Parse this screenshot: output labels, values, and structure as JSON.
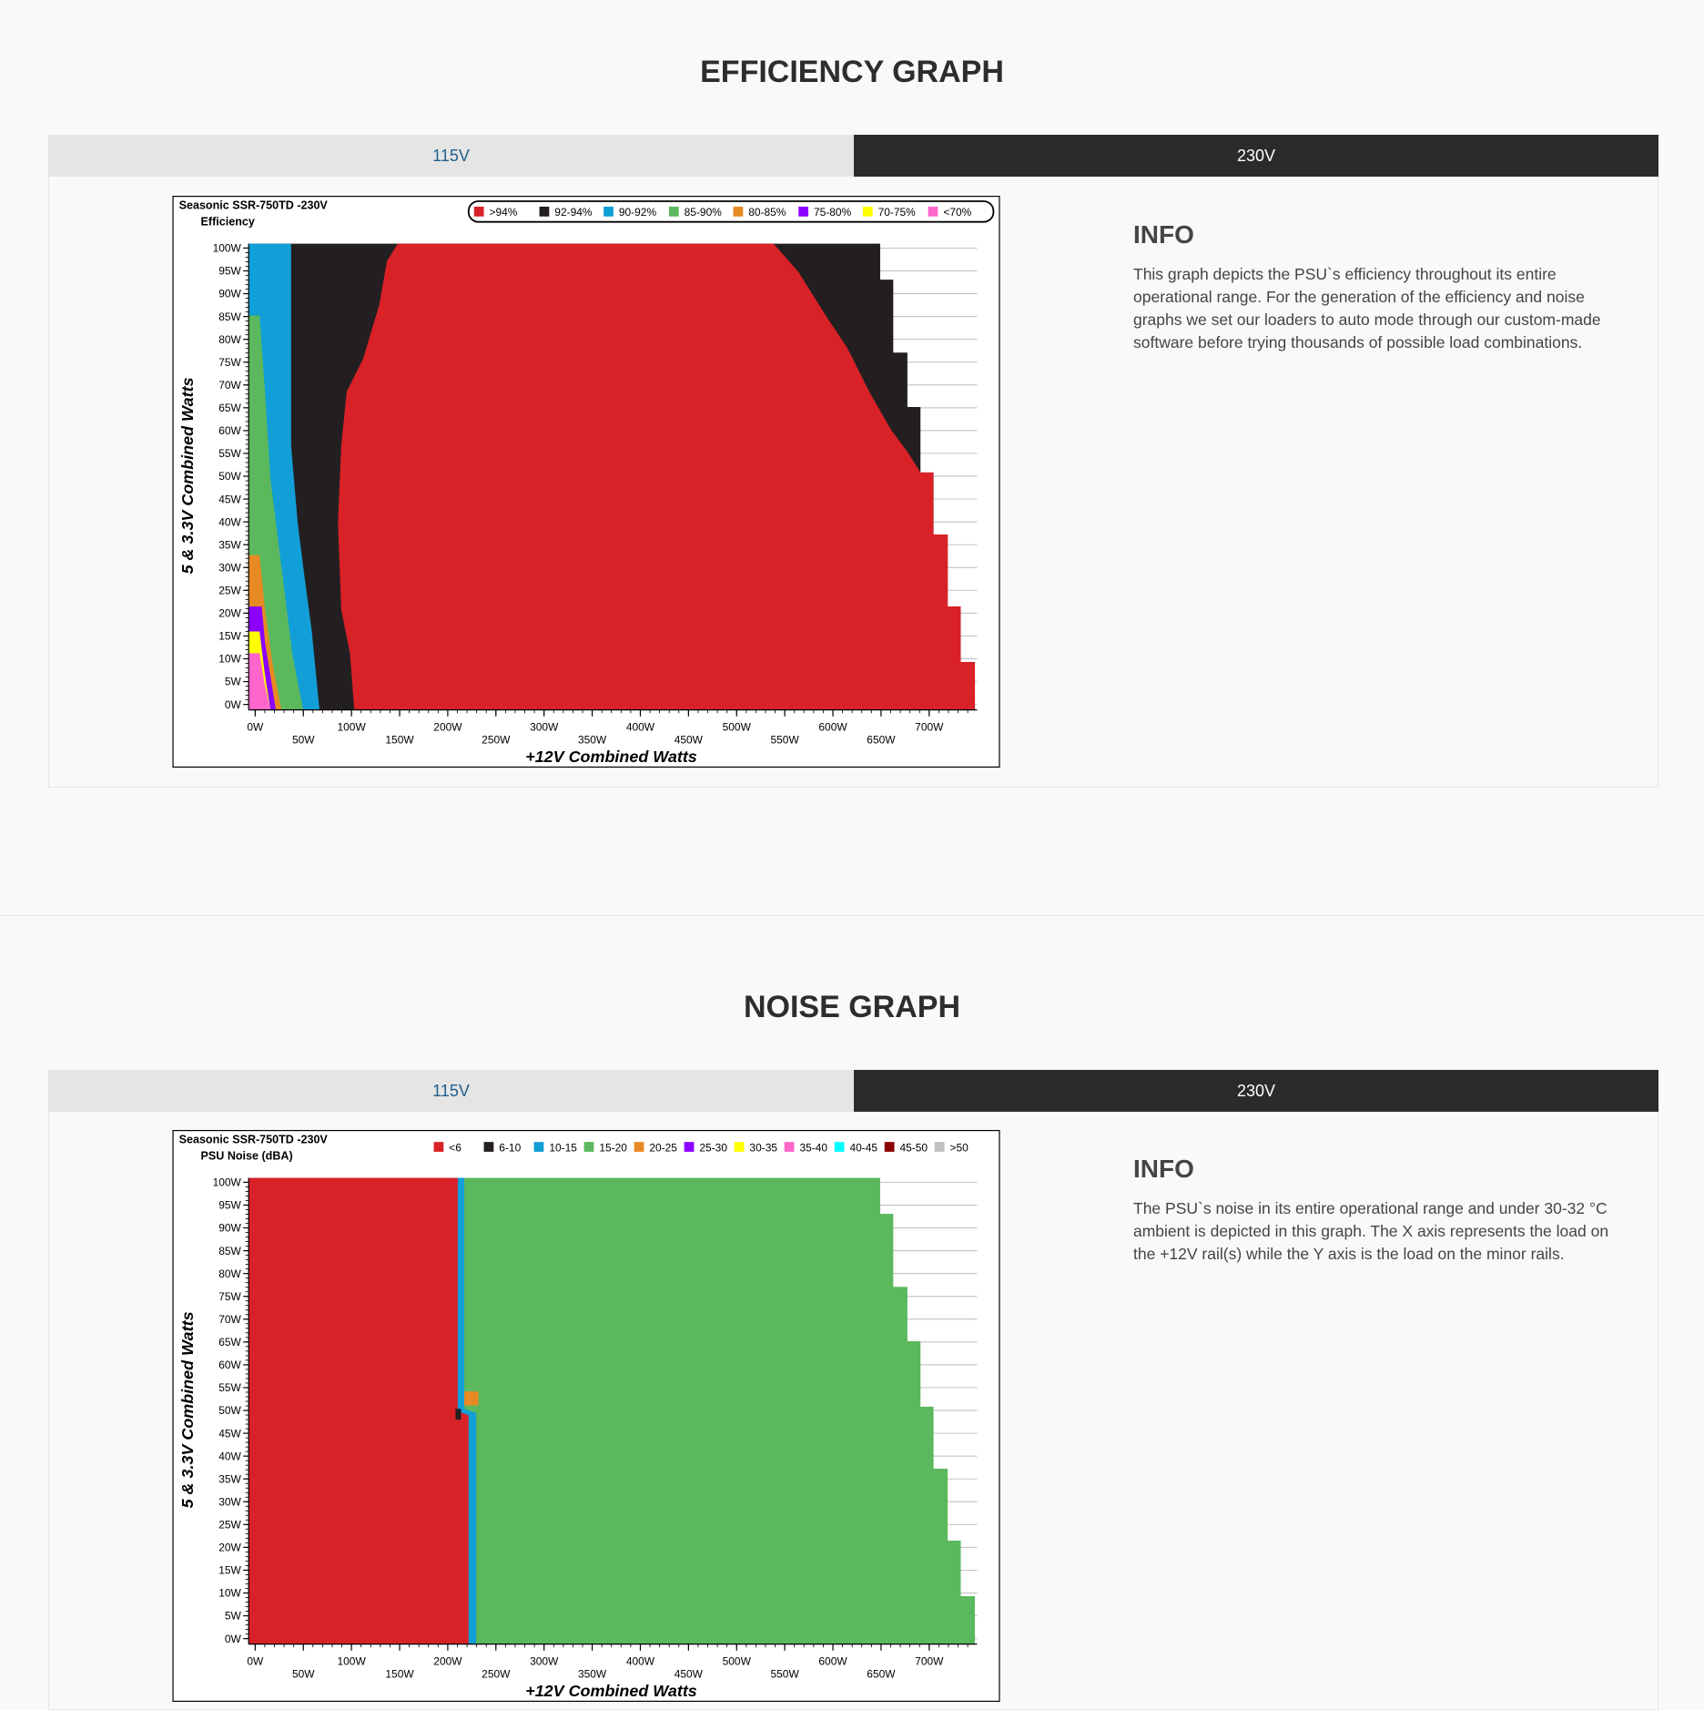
{
  "sections": [
    {
      "title": "EFFICIENCY GRAPH",
      "tabs": [
        "115V",
        "230V"
      ],
      "chart": {
        "title": "Seasonic SSR-750TD -230V",
        "subtitle": "Efficiency",
        "legend": [
          {
            "label": ">94%",
            "color": "#d92128"
          },
          {
            "label": "92-94%",
            "color": "#231f20"
          },
          {
            "label": "90-92%",
            "color": "#129fd7"
          },
          {
            "label": "85-90%",
            "color": "#5bb85d"
          },
          {
            "label": "80-85%",
            "color": "#e88a23"
          },
          {
            "label": "75-80%",
            "color": "#8b00ff"
          },
          {
            "label": "70-75%",
            "color": "#ffff00"
          },
          {
            "label": "<70%",
            "color": "#ff66cc"
          }
        ],
        "yticks": [
          "100W",
          "95W",
          "90W",
          "85W",
          "80W",
          "75W",
          "70W",
          "65W",
          "60W",
          "55W",
          "50W",
          "45W",
          "40W",
          "35W",
          "30W",
          "25W",
          "20W",
          "15W",
          "10W",
          "5W",
          "0W"
        ],
        "xticks": [
          "0W",
          "50W",
          "100W",
          "150W",
          "200W",
          "250W",
          "300W",
          "350W",
          "400W",
          "450W",
          "500W",
          "550W",
          "600W",
          "650W",
          "700W"
        ],
        "xlabel": "+12V Combined Watts",
        "ylabel": "5 & 3.3V Combined Watts"
      },
      "info": {
        "heading": "INFO",
        "text": "This graph depicts the PSU`s efficiency throughout its entire operational range. For the generation of the efficiency and noise graphs we set our loaders to auto mode through our custom-made software before trying thousands of possible load combinations."
      }
    },
    {
      "title": "NOISE GRAPH",
      "tabs": [
        "115V",
        "230V"
      ],
      "chart": {
        "title": "Seasonic SSR-750TD -230V",
        "subtitle": "PSU Noise (dBA)",
        "legend": [
          {
            "label": "<6",
            "color": "#d92128"
          },
          {
            "label": "6-10",
            "color": "#231f20"
          },
          {
            "label": "10-15",
            "color": "#129fd7"
          },
          {
            "label": "15-20",
            "color": "#5bb85d"
          },
          {
            "label": "20-25",
            "color": "#e88a23"
          },
          {
            "label": "25-30",
            "color": "#8b00ff"
          },
          {
            "label": "30-35",
            "color": "#ffff00"
          },
          {
            "label": "35-40",
            "color": "#ff66cc"
          },
          {
            "label": "40-45",
            "color": "#00ffff"
          },
          {
            "label": "45-50",
            "color": "#8b0000"
          },
          {
            "label": ">50",
            "color": "#c0c0c0"
          }
        ],
        "yticks": [
          "100W",
          "95W",
          "90W",
          "85W",
          "80W",
          "75W",
          "70W",
          "65W",
          "60W",
          "55W",
          "50W",
          "45W",
          "40W",
          "35W",
          "30W",
          "25W",
          "20W",
          "15W",
          "10W",
          "5W",
          "0W"
        ],
        "xticks": [
          "0W",
          "50W",
          "100W",
          "150W",
          "200W",
          "250W",
          "300W",
          "350W",
          "400W",
          "450W",
          "500W",
          "550W",
          "600W",
          "650W",
          "700W"
        ],
        "xlabel": "+12V Combined Watts",
        "ylabel": "5 & 3.3V Combined Watts"
      },
      "info": {
        "heading": "INFO",
        "text": "The PSU`s noise in its entire operational range and under 30-32 °C ambient is depicted in this graph. The X axis represents the load on the +12V rail(s) while the Y axis is the load on the minor rails."
      }
    }
  ]
}
